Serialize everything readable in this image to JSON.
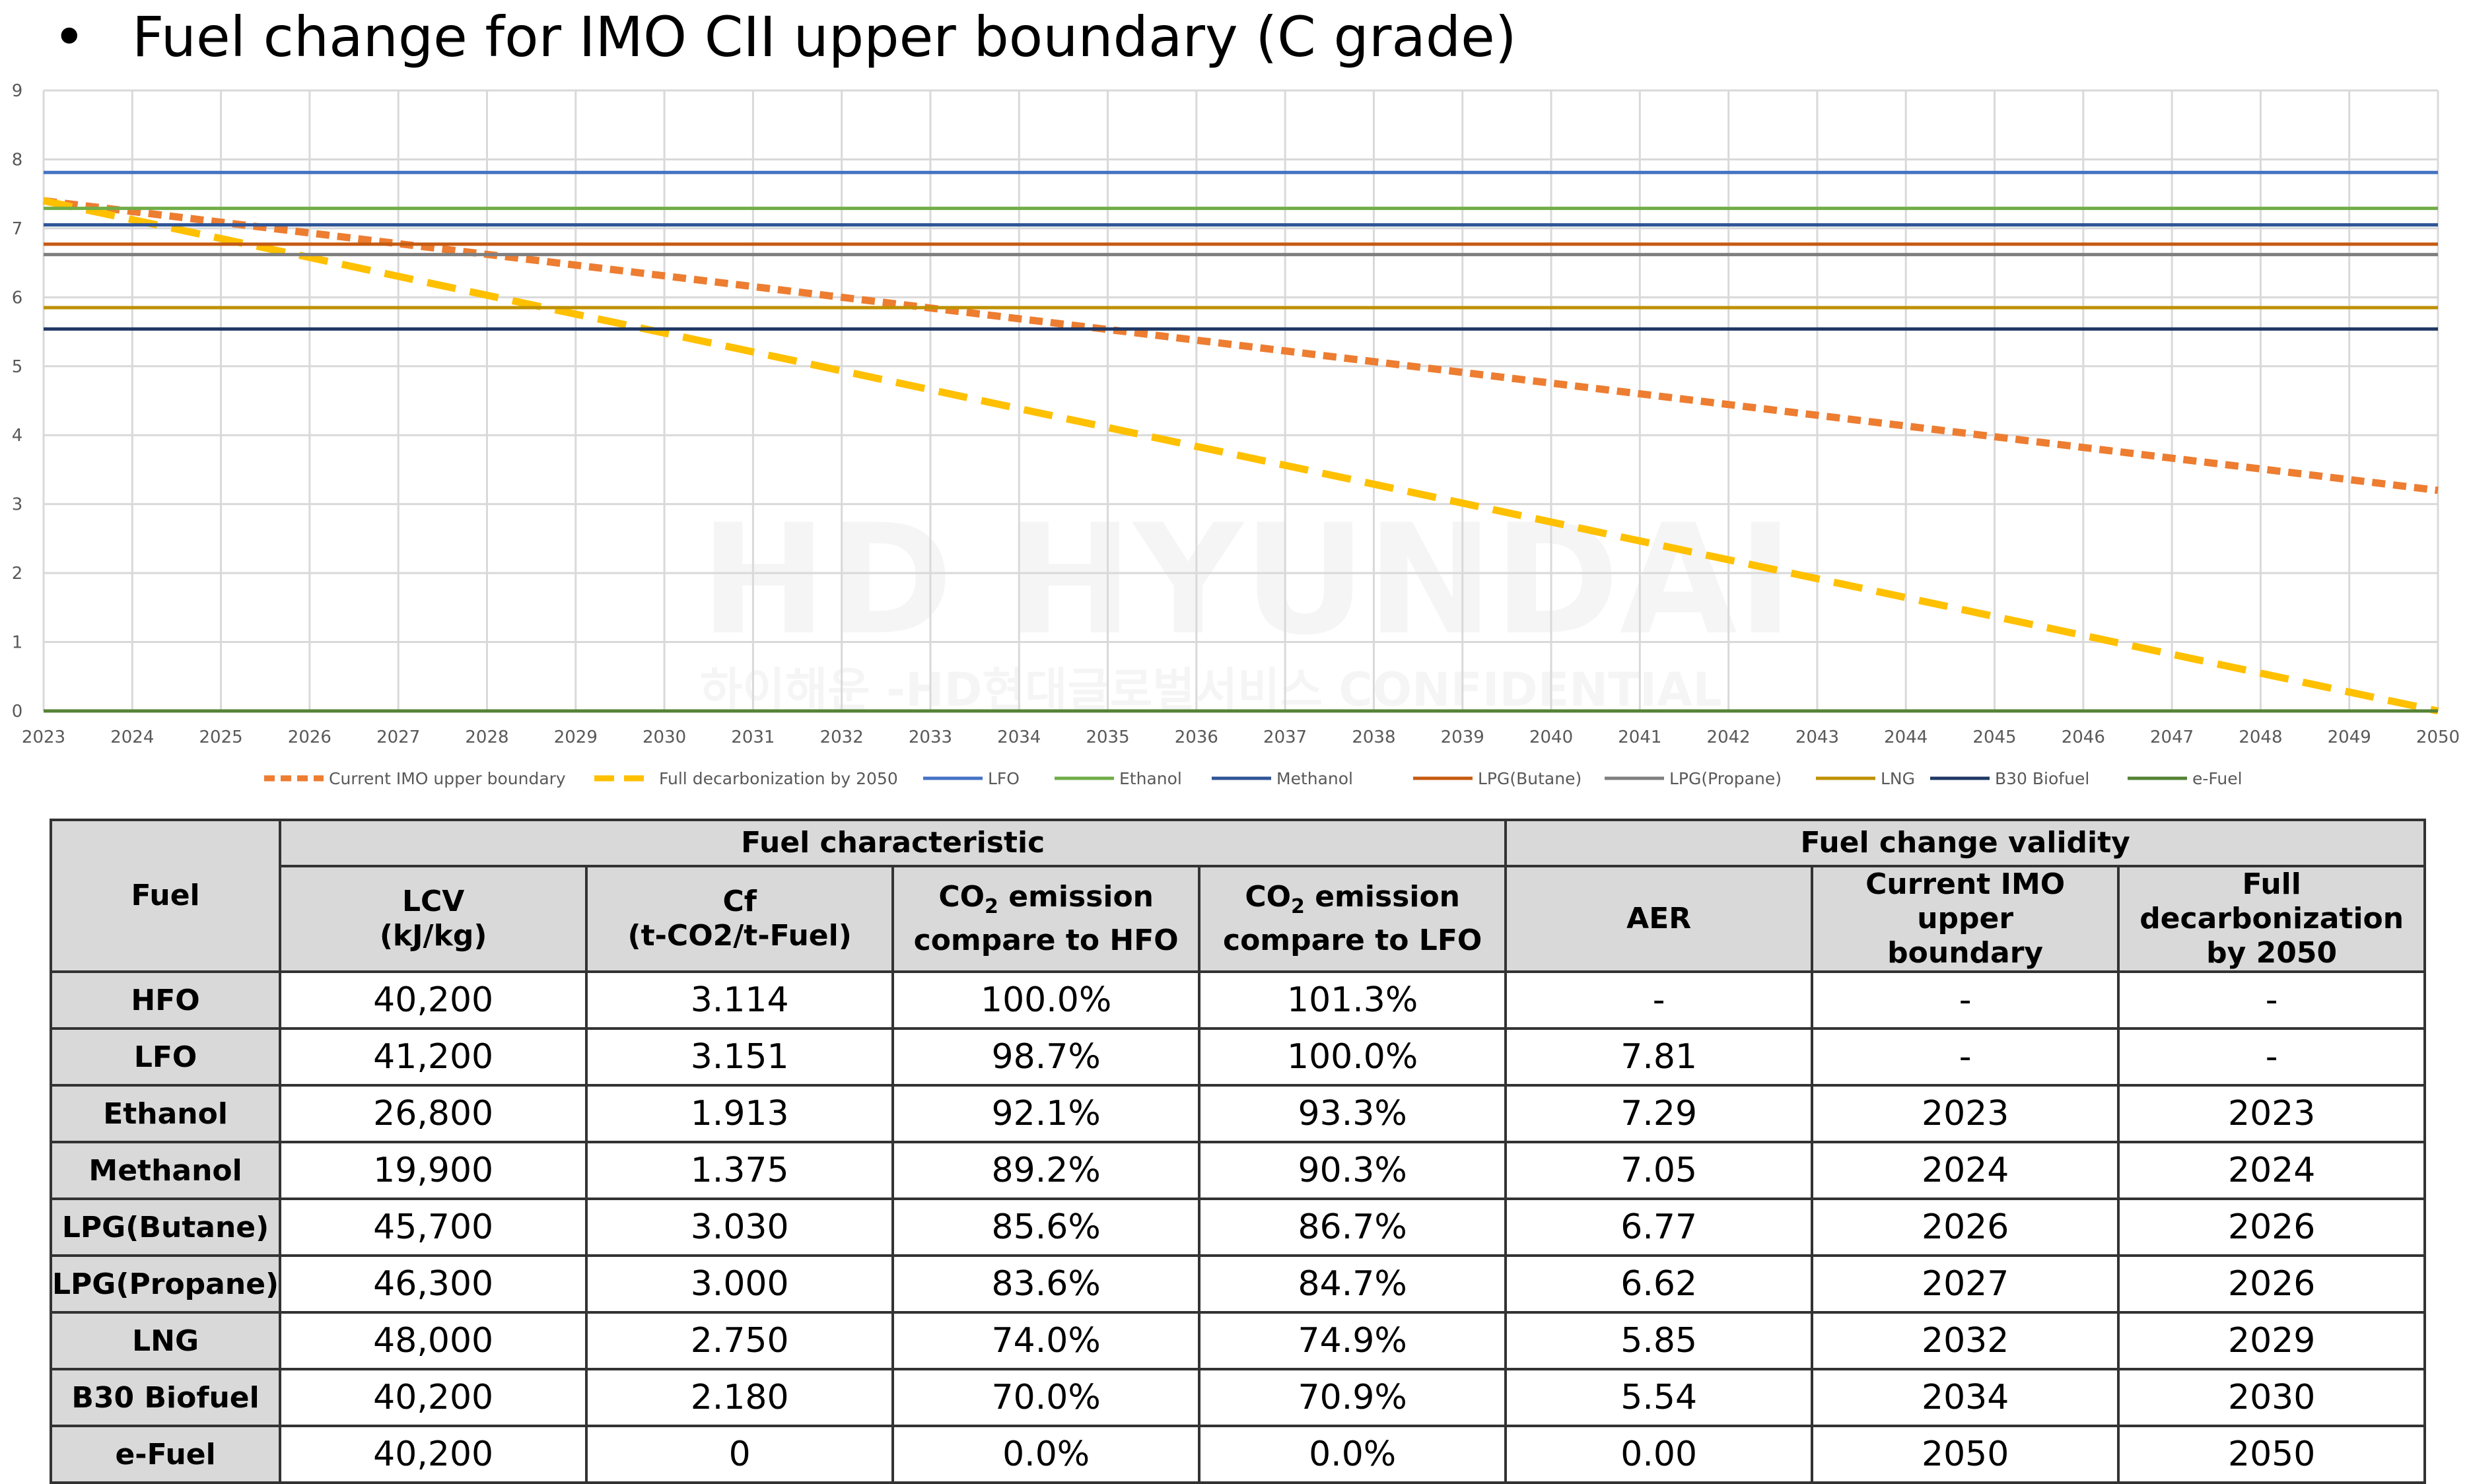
{
  "title": "Fuel change for IMO CII upper boundary (C grade)",
  "bullet": "•",
  "watermark": {
    "brand": "HD HYUNDAI",
    "line2": "하이해운 -HD현대글로벌서비스 CONFIDENTIAL"
  },
  "chart_data": {
    "type": "line",
    "title": "Fuel change for IMO CII upper boundary (C grade)",
    "x": [
      2023,
      2024,
      2025,
      2026,
      2027,
      2028,
      2029,
      2030,
      2031,
      2032,
      2033,
      2034,
      2035,
      2036,
      2037,
      2038,
      2039,
      2040,
      2041,
      2042,
      2043,
      2044,
      2045,
      2046,
      2047,
      2048,
      2049,
      2050
    ],
    "xlim": [
      2023,
      2050
    ],
    "ylim": [
      0,
      9
    ],
    "yticks": [
      0,
      1,
      2,
      3,
      4,
      5,
      6,
      7,
      8,
      9
    ],
    "grid": true,
    "legend": "bottom",
    "series": [
      {
        "name": "Current IMO upper boundary",
        "style": "dashed",
        "color": "#ed7d31",
        "start": 7.4,
        "end": 3.2
      },
      {
        "name": "Full decarbonization by 2050",
        "style": "dashed",
        "color": "#ffc000",
        "start": 7.4,
        "end": 0.0
      },
      {
        "name": "LFO",
        "style": "solid",
        "color": "#4472c4",
        "value": 7.81
      },
      {
        "name": "Ethanol",
        "style": "solid",
        "color": "#70ad47",
        "value": 7.29
      },
      {
        "name": "Methanol",
        "style": "solid",
        "color": "#2f5597",
        "value": 7.05
      },
      {
        "name": "LPG(Butane)",
        "style": "solid",
        "color": "#c55a11",
        "value": 6.77
      },
      {
        "name": "LPG(Propane)",
        "style": "solid",
        "color": "#7f7f7f",
        "value": 6.62
      },
      {
        "name": "LNG",
        "style": "solid",
        "color": "#bf9000",
        "value": 5.85
      },
      {
        "name": "B30 Biofuel",
        "style": "solid",
        "color": "#203864",
        "value": 5.54
      },
      {
        "name": "e-Fuel",
        "style": "solid",
        "color": "#548235",
        "value": 0.0
      }
    ]
  },
  "table": {
    "group_headers": {
      "fuel": "Fuel",
      "characteristic": "Fuel characteristic",
      "validity": "Fuel change validity"
    },
    "columns": {
      "lcv": [
        "LCV",
        "(kJ/kg)"
      ],
      "cf": [
        "Cf",
        "(t-CO2/t-Fuel)"
      ],
      "hfo": [
        "CO",
        "2",
        " emission",
        "compare to HFO"
      ],
      "lfo": [
        "CO",
        "2",
        " emission",
        "compare to LFO"
      ],
      "aer": "AER",
      "imo": [
        "Current IMO upper",
        "boundary"
      ],
      "full": [
        "Full decarbonization",
        "by 2050"
      ]
    },
    "rows": [
      {
        "fuel": "HFO",
        "lcv": "40,200",
        "cf": "3.114",
        "hfo": "100.0%",
        "lfo": "101.3%",
        "aer": "-",
        "imo": "-",
        "full": "-"
      },
      {
        "fuel": "LFO",
        "lcv": "41,200",
        "cf": "3.151",
        "hfo": "98.7%",
        "lfo": "100.0%",
        "aer": "7.81",
        "imo": "-",
        "full": "-"
      },
      {
        "fuel": "Ethanol",
        "lcv": "26,800",
        "cf": "1.913",
        "hfo": "92.1%",
        "lfo": "93.3%",
        "aer": "7.29",
        "imo": "2023",
        "full": "2023"
      },
      {
        "fuel": "Methanol",
        "lcv": "19,900",
        "cf": "1.375",
        "hfo": "89.2%",
        "lfo": "90.3%",
        "aer": "7.05",
        "imo": "2024",
        "full": "2024"
      },
      {
        "fuel": "LPG(Butane)",
        "lcv": "45,700",
        "cf": "3.030",
        "hfo": "85.6%",
        "lfo": "86.7%",
        "aer": "6.77",
        "imo": "2026",
        "full": "2026"
      },
      {
        "fuel": "LPG(Propane)",
        "lcv": "46,300",
        "cf": "3.000",
        "hfo": "83.6%",
        "lfo": "84.7%",
        "aer": "6.62",
        "imo": "2027",
        "full": "2026"
      },
      {
        "fuel": "LNG",
        "lcv": "48,000",
        "cf": "2.750",
        "hfo": "74.0%",
        "lfo": "74.9%",
        "aer": "5.85",
        "imo": "2032",
        "full": "2029"
      },
      {
        "fuel": "B30 Biofuel",
        "lcv": "40,200",
        "cf": "2.180",
        "hfo": "70.0%",
        "lfo": "70.9%",
        "aer": "5.54",
        "imo": "2034",
        "full": "2030"
      },
      {
        "fuel": "e-Fuel",
        "lcv": "40,200",
        "cf": "0",
        "hfo": "0.0%",
        "lfo": "0.0%",
        "aer": "0.00",
        "imo": "2050",
        "full": "2050"
      }
    ]
  }
}
